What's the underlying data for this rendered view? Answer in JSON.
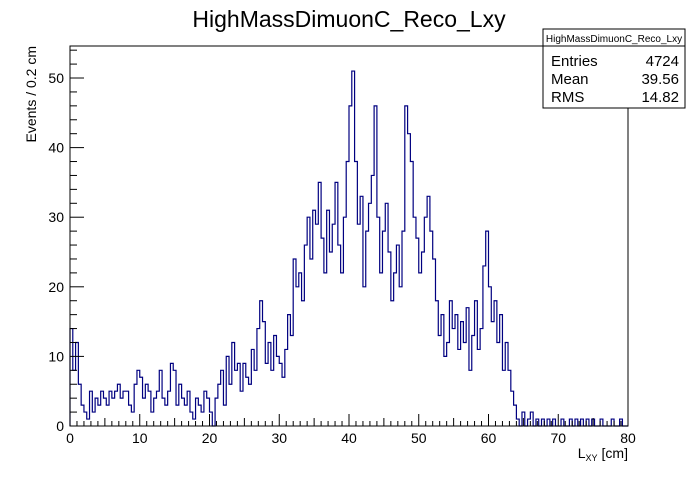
{
  "chart_data": {
    "type": "histogram",
    "title": "HighMassDimuonC_Reco_Lxy",
    "xlabel_main": "L",
    "xlabel_sub": "XY",
    "xlabel_unit": "[cm]",
    "ylabel": "Events / 0.2 cm",
    "xlim": [
      0,
      80
    ],
    "ylim": [
      0,
      54.6
    ],
    "x_ticks": [
      0,
      10,
      20,
      30,
      40,
      50,
      60,
      70,
      80
    ],
    "y_ticks": [
      0,
      10,
      20,
      30,
      40,
      50
    ],
    "bin_width": 0.2,
    "line_color": "#000080",
    "grid": false,
    "stats_box": {
      "name": "HighMassDimuonC_Reco_Lxy",
      "rows": [
        {
          "label": "Entries",
          "value": "4724"
        },
        {
          "label": "Mean",
          "value": "39.56"
        },
        {
          "label": "RMS",
          "value": "14.82"
        }
      ]
    },
    "points": [
      [
        0.0,
        14
      ],
      [
        0.4,
        8
      ],
      [
        0.8,
        12
      ],
      [
        1.2,
        6
      ],
      [
        1.6,
        3
      ],
      [
        2.0,
        2
      ],
      [
        2.4,
        1
      ],
      [
        2.8,
        5
      ],
      [
        3.2,
        2
      ],
      [
        3.6,
        4
      ],
      [
        4.0,
        3
      ],
      [
        4.4,
        5
      ],
      [
        4.8,
        4
      ],
      [
        5.2,
        3
      ],
      [
        5.6,
        5
      ],
      [
        6.0,
        4
      ],
      [
        6.4,
        5
      ],
      [
        6.8,
        6
      ],
      [
        7.2,
        4
      ],
      [
        7.6,
        5
      ],
      [
        8.0,
        5
      ],
      [
        8.4,
        3
      ],
      [
        8.8,
        2
      ],
      [
        9.2,
        6
      ],
      [
        9.6,
        8
      ],
      [
        10.0,
        7
      ],
      [
        10.4,
        4
      ],
      [
        10.8,
        6
      ],
      [
        11.2,
        5
      ],
      [
        11.6,
        2
      ],
      [
        12.0,
        4
      ],
      [
        12.4,
        5
      ],
      [
        12.8,
        8
      ],
      [
        13.2,
        4
      ],
      [
        13.6,
        3
      ],
      [
        14.0,
        5
      ],
      [
        14.4,
        9
      ],
      [
        14.8,
        8
      ],
      [
        15.2,
        3
      ],
      [
        15.6,
        6
      ],
      [
        16.0,
        4
      ],
      [
        16.4,
        3
      ],
      [
        16.8,
        5
      ],
      [
        17.2,
        2
      ],
      [
        17.6,
        1
      ],
      [
        18.0,
        4
      ],
      [
        18.4,
        3
      ],
      [
        18.8,
        2
      ],
      [
        19.2,
        5
      ],
      [
        19.6,
        4
      ],
      [
        20.0,
        2
      ],
      [
        20.4,
        0
      ],
      [
        20.8,
        4
      ],
      [
        21.2,
        6
      ],
      [
        21.6,
        8
      ],
      [
        22.0,
        3
      ],
      [
        22.4,
        10
      ],
      [
        22.8,
        6
      ],
      [
        23.2,
        12
      ],
      [
        23.6,
        8
      ],
      [
        24.0,
        9
      ],
      [
        24.4,
        5
      ],
      [
        24.8,
        9
      ],
      [
        25.2,
        7
      ],
      [
        25.6,
        6
      ],
      [
        26.0,
        11
      ],
      [
        26.4,
        8
      ],
      [
        26.8,
        14
      ],
      [
        27.2,
        18
      ],
      [
        27.6,
        15
      ],
      [
        28.0,
        9
      ],
      [
        28.4,
        12
      ],
      [
        28.8,
        8
      ],
      [
        29.2,
        13
      ],
      [
        29.6,
        10
      ],
      [
        30.0,
        9
      ],
      [
        30.4,
        7
      ],
      [
        30.8,
        11
      ],
      [
        31.2,
        16
      ],
      [
        31.6,
        13
      ],
      [
        32.0,
        24
      ],
      [
        32.4,
        20
      ],
      [
        32.8,
        22
      ],
      [
        33.2,
        18
      ],
      [
        33.6,
        26
      ],
      [
        34.0,
        30
      ],
      [
        34.4,
        24
      ],
      [
        34.8,
        31
      ],
      [
        35.2,
        29
      ],
      [
        35.6,
        35
      ],
      [
        36.0,
        27
      ],
      [
        36.4,
        22
      ],
      [
        36.8,
        31
      ],
      [
        37.2,
        25
      ],
      [
        37.6,
        29
      ],
      [
        38.0,
        35
      ],
      [
        38.4,
        26
      ],
      [
        38.8,
        22
      ],
      [
        39.2,
        30
      ],
      [
        39.6,
        38
      ],
      [
        40.0,
        46
      ],
      [
        40.4,
        51
      ],
      [
        40.8,
        38
      ],
      [
        41.2,
        29
      ],
      [
        41.6,
        33
      ],
      [
        42.0,
        20
      ],
      [
        42.4,
        28
      ],
      [
        42.8,
        32
      ],
      [
        43.2,
        36
      ],
      [
        43.6,
        46
      ],
      [
        44.0,
        30
      ],
      [
        44.4,
        22
      ],
      [
        44.8,
        28
      ],
      [
        45.2,
        32
      ],
      [
        45.6,
        25
      ],
      [
        46.0,
        18
      ],
      [
        46.4,
        22
      ],
      [
        46.8,
        26
      ],
      [
        47.2,
        20
      ],
      [
        47.6,
        28
      ],
      [
        48.0,
        46
      ],
      [
        48.4,
        42
      ],
      [
        48.8,
        38
      ],
      [
        49.2,
        30
      ],
      [
        49.6,
        27
      ],
      [
        50.0,
        22
      ],
      [
        50.4,
        25
      ],
      [
        50.8,
        30
      ],
      [
        51.2,
        33
      ],
      [
        51.6,
        28
      ],
      [
        52.0,
        24
      ],
      [
        52.4,
        18
      ],
      [
        52.8,
        13
      ],
      [
        53.2,
        16
      ],
      [
        53.6,
        10
      ],
      [
        54.0,
        12
      ],
      [
        54.4,
        18
      ],
      [
        54.8,
        14
      ],
      [
        55.2,
        16
      ],
      [
        55.6,
        11
      ],
      [
        56.0,
        15
      ],
      [
        56.4,
        12
      ],
      [
        56.8,
        17
      ],
      [
        57.2,
        8
      ],
      [
        57.6,
        13
      ],
      [
        58.0,
        18
      ],
      [
        58.4,
        11
      ],
      [
        58.8,
        14
      ],
      [
        59.2,
        23
      ],
      [
        59.6,
        28
      ],
      [
        60.0,
        20
      ],
      [
        60.4,
        15
      ],
      [
        60.8,
        18
      ],
      [
        61.2,
        12
      ],
      [
        61.6,
        16
      ],
      [
        62.0,
        8
      ],
      [
        62.4,
        12
      ],
      [
        62.8,
        8
      ],
      [
        63.2,
        5
      ],
      [
        63.6,
        3
      ],
      [
        64.0,
        1
      ],
      [
        64.4,
        0
      ],
      [
        64.8,
        2
      ],
      [
        65.2,
        0
      ],
      [
        65.6,
        1
      ],
      [
        66.0,
        2
      ],
      [
        66.4,
        0
      ],
      [
        66.8,
        1
      ],
      [
        67.2,
        0
      ],
      [
        67.6,
        1
      ],
      [
        68.0,
        0
      ],
      [
        68.4,
        1
      ],
      [
        68.8,
        0
      ],
      [
        69.2,
        1
      ],
      [
        69.6,
        0
      ],
      [
        70.0,
        0
      ],
      [
        70.4,
        1
      ],
      [
        70.8,
        0
      ],
      [
        71.2,
        0
      ],
      [
        71.6,
        1
      ],
      [
        72.0,
        0
      ],
      [
        72.4,
        1
      ],
      [
        72.8,
        0
      ],
      [
        73.2,
        1
      ],
      [
        73.6,
        0
      ],
      [
        74.0,
        1
      ],
      [
        74.4,
        0
      ],
      [
        74.8,
        1
      ],
      [
        75.2,
        0
      ],
      [
        75.6,
        0
      ],
      [
        76.0,
        1
      ],
      [
        76.4,
        0
      ],
      [
        76.8,
        0
      ],
      [
        77.2,
        0
      ],
      [
        77.6,
        1
      ],
      [
        78.0,
        0
      ],
      [
        78.4,
        0
      ],
      [
        78.8,
        1
      ],
      [
        79.2,
        0
      ],
      [
        79.6,
        0
      ]
    ]
  }
}
